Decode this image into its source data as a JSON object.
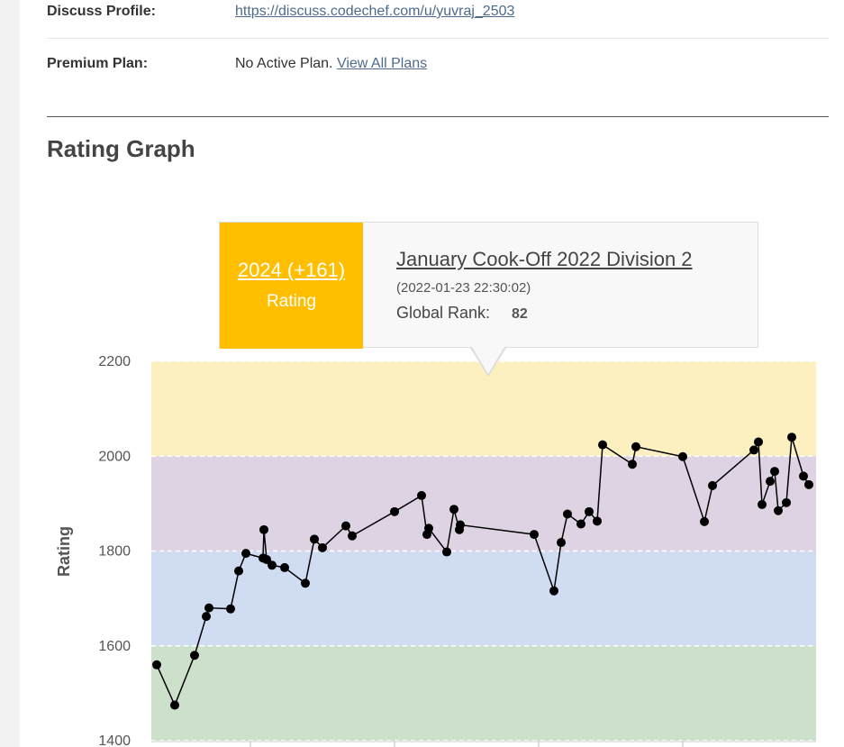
{
  "profile": {
    "discuss_label": "Discuss Profile:",
    "discuss_url": "https://discuss.codechef.com/u/yuvraj_2503",
    "premium_label": "Premium Plan:",
    "premium_value": "No Active Plan.",
    "premium_link": "View All Plans"
  },
  "section": {
    "title": "Rating Graph"
  },
  "tooltip": {
    "score": "2024 (+161)",
    "score_label": "Rating",
    "contest": "January Cook-Off 2022 Division 2",
    "date": "(2022-01-23 22:30:02)",
    "rank_label": "Global Rank:",
    "rank_value": "82"
  },
  "colors": {
    "band_top": "#fcefc0",
    "band_purple": "#ddd3e3",
    "band_blue": "#d0dcf2",
    "band_green": "#cce0cc",
    "tooltip_accent": "#ffbf00",
    "line": "#000000"
  },
  "chart_data": {
    "type": "line",
    "ylabel": "Rating",
    "ylim": [
      1400,
      2200
    ],
    "yticks": [
      "2200",
      "2000",
      "1800",
      "1600",
      "1400"
    ],
    "bands": [
      {
        "from": 2000,
        "to": 2200,
        "color": "#fcefc0"
      },
      {
        "from": 1800,
        "to": 2000,
        "color": "#ddd3e3"
      },
      {
        "from": 1600,
        "to": 1800,
        "color": "#d0dcf2"
      },
      {
        "from": 1400,
        "to": 1600,
        "color": "#cce0cc"
      }
    ],
    "series": [
      {
        "values": [
          1560,
          1475,
          1580,
          1662,
          1680,
          1678,
          1758,
          1795,
          1785,
          1845,
          1782,
          1770,
          1765,
          1732,
          1825,
          1807,
          1853,
          1832,
          1883,
          1917,
          1835,
          1848,
          1798,
          1888,
          1845,
          1855,
          1835,
          1716,
          1818,
          1878,
          1857,
          1883,
          1863,
          2024,
          1983,
          2020,
          1999,
          1862,
          1938,
          2013,
          2030,
          1898,
          1947,
          1968,
          1885,
          1902,
          2040,
          1958,
          1940
        ]
      }
    ]
  }
}
